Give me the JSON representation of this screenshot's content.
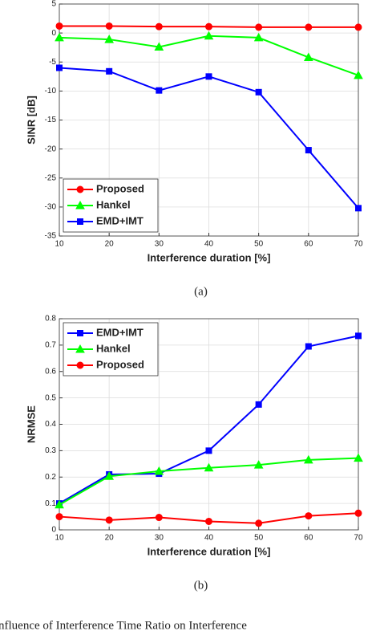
{
  "chart_data": [
    {
      "type": "line",
      "xlabel": "Interference duration [%]",
      "ylabel": "SINR [dB]",
      "caption": "(a)",
      "x": [
        10,
        20,
        30,
        40,
        50,
        60,
        70
      ],
      "xlim": [
        10,
        70
      ],
      "xticks": [
        10,
        20,
        30,
        40,
        50,
        60,
        70
      ],
      "ylim": [
        -35,
        5
      ],
      "yticks": [
        -35,
        -30,
        -25,
        -20,
        -15,
        -10,
        -5,
        0,
        5
      ],
      "grid": true,
      "legend": "lower left",
      "series": [
        {
          "name": "Proposed",
          "color": "#ff0000",
          "marker": "circle",
          "values": [
            1.2,
            1.2,
            1.1,
            1.1,
            1.0,
            1.0,
            1.0
          ]
        },
        {
          "name": "Hankel",
          "color": "#00ff00",
          "marker": "triangle",
          "values": [
            -0.8,
            -1.1,
            -2.4,
            -0.5,
            -0.8,
            -4.2,
            -7.3
          ]
        },
        {
          "name": "EMD+IMT",
          "color": "#0000ff",
          "marker": "square",
          "values": [
            -6.0,
            -6.6,
            -9.9,
            -7.5,
            -10.2,
            -20.2,
            -30.2
          ]
        }
      ]
    },
    {
      "type": "line",
      "xlabel": "Interference duration [%]",
      "ylabel": "NRMSE",
      "caption": "(b)",
      "x": [
        10,
        20,
        30,
        40,
        50,
        60,
        70
      ],
      "xlim": [
        10,
        70
      ],
      "xticks": [
        10,
        20,
        30,
        40,
        50,
        60,
        70
      ],
      "ylim": [
        0,
        0.8
      ],
      "yticks": [
        0,
        0.1,
        0.2,
        0.3,
        0.4,
        0.5,
        0.6,
        0.7,
        0.8
      ],
      "grid": true,
      "legend": "upper left",
      "series": [
        {
          "name": "EMD+IMT",
          "color": "#0000ff",
          "marker": "square",
          "values": [
            0.1,
            0.21,
            0.213,
            0.3,
            0.475,
            0.695,
            0.735
          ]
        },
        {
          "name": "Hankel",
          "color": "#00ff00",
          "marker": "triangle",
          "values": [
            0.095,
            0.203,
            0.222,
            0.235,
            0.246,
            0.265,
            0.272
          ]
        },
        {
          "name": "Proposed",
          "color": "#ff0000",
          "marker": "circle",
          "values": [
            0.05,
            0.037,
            0.047,
            0.032,
            0.025,
            0.053,
            0.063
          ]
        }
      ]
    }
  ],
  "figure_caption": "nfluence of Interference Time Ratio on Interference"
}
